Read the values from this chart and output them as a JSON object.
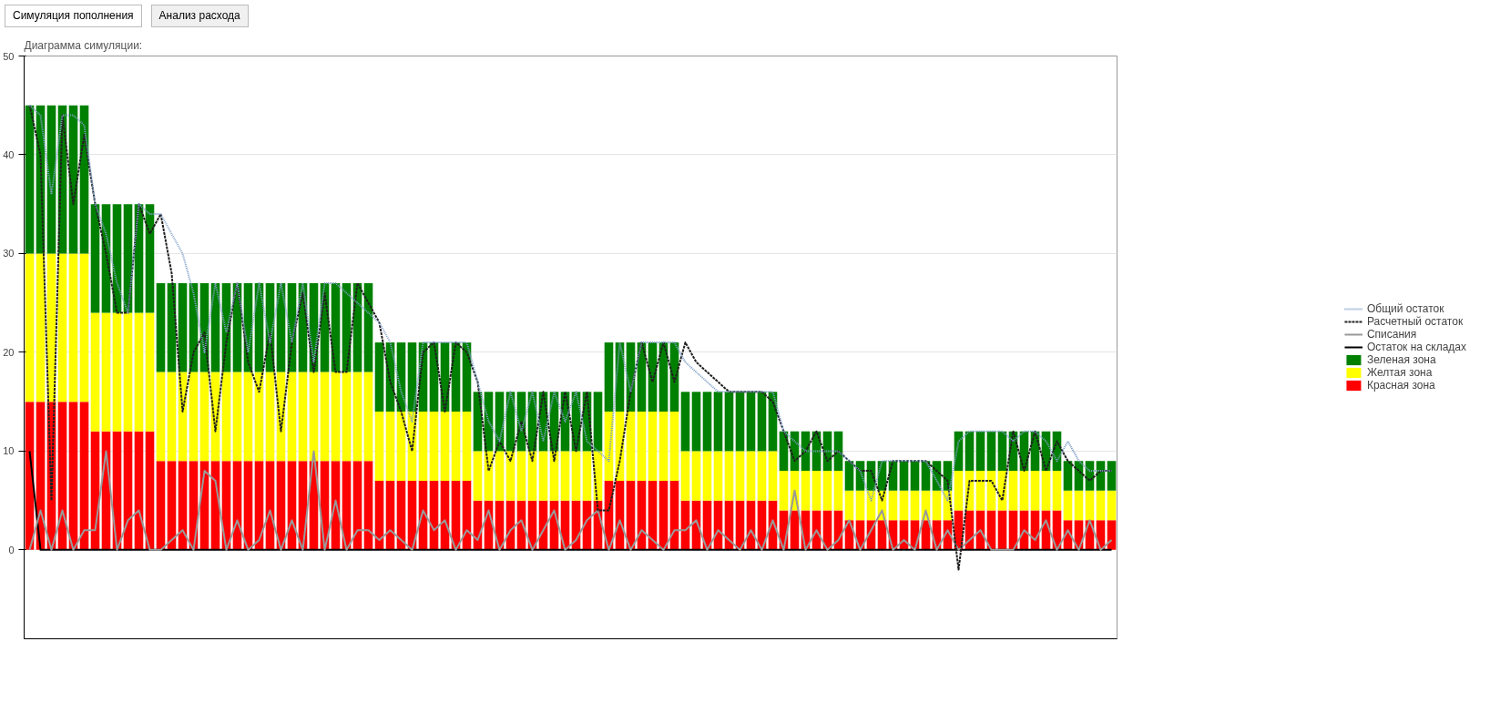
{
  "chart_data": {
    "type": "bar",
    "stacked": true,
    "title": "Диаграмма симуляции:",
    "annotations": [
      "Симуляция пополнения",
      "Анализ расхода"
    ],
    "categories": [
      null,
      null,
      null,
      null,
      null,
      null,
      null,
      null,
      null,
      null,
      null,
      null,
      null,
      null,
      null,
      null,
      null,
      null,
      null,
      null,
      null,
      null,
      null,
      null,
      null,
      null,
      null,
      null,
      null,
      null,
      null,
      null,
      null,
      null,
      null,
      null,
      null,
      null,
      null,
      null,
      null,
      null,
      null,
      null,
      null,
      null,
      null,
      null,
      null,
      null,
      null,
      null,
      null,
      null,
      null,
      null,
      null,
      null,
      null,
      null,
      null,
      null,
      null,
      null,
      null,
      null,
      null,
      null,
      null,
      null,
      null,
      null,
      null,
      null,
      null,
      null,
      null,
      null,
      null,
      null,
      null,
      null,
      null,
      null,
      null,
      null,
      null,
      null,
      null,
      null,
      null,
      null,
      null,
      null,
      null,
      null,
      null,
      null,
      null,
      null
    ],
    "ylim": [
      -9,
      50
    ],
    "yticks": [
      0,
      10,
      20,
      30,
      40,
      50
    ],
    "grid": "y",
    "legend": "right",
    "tick_labels": "y",
    "series": [
      {
        "name": "Общий остаток",
        "type": "line",
        "line_style": "dotted",
        "color": "#7f9fc8",
        "values": [
          45,
          44,
          36,
          44,
          44,
          43,
          35,
          32,
          27,
          24,
          35,
          34,
          34,
          32,
          30,
          26,
          20,
          27,
          22,
          27,
          20,
          27,
          21,
          27,
          21,
          27,
          19,
          27,
          27,
          26,
          25,
          24,
          23,
          21,
          16,
          13,
          21,
          21,
          21,
          21,
          21,
          17,
          13,
          11,
          16,
          12,
          16,
          11,
          16,
          13,
          16,
          11,
          10,
          9,
          21,
          16,
          21,
          21,
          21,
          21,
          19,
          18,
          17,
          16,
          16,
          16,
          16,
          16,
          16,
          12,
          11,
          10,
          10,
          10,
          10,
          9,
          8,
          5,
          9,
          9,
          9,
          9,
          9,
          7,
          5,
          11,
          12,
          12,
          12,
          12,
          11,
          12,
          12,
          11,
          9,
          11,
          9,
          8,
          8,
          8
        ]
      },
      {
        "name": "Расчетный остаток",
        "type": "line",
        "line_style": "dashed",
        "color": "#202020",
        "values": [
          45,
          40,
          5,
          44,
          35,
          42,
          35,
          30,
          24,
          24,
          35,
          32,
          34,
          28,
          14,
          20,
          22,
          12,
          21,
          27,
          19,
          16,
          22,
          12,
          21,
          26,
          18,
          26,
          18,
          18,
          27,
          25,
          23,
          17,
          14,
          10,
          20,
          21,
          14,
          21,
          20,
          17,
          8,
          11,
          9,
          13,
          9,
          16,
          9,
          16,
          10,
          16,
          4,
          4,
          9,
          16,
          21,
          17,
          21,
          17,
          21,
          19,
          18,
          17,
          16,
          16,
          16,
          16,
          15,
          12,
          9,
          10,
          12,
          9,
          10,
          9,
          8,
          8,
          5,
          9,
          9,
          9,
          9,
          8,
          7,
          -2,
          7,
          7,
          7,
          5,
          12,
          8,
          12,
          8,
          11,
          9,
          8,
          7,
          8,
          8
        ]
      },
      {
        "name": "Списания",
        "type": "line",
        "line_style": "solid",
        "color": "#999999",
        "values": [
          0,
          4,
          0,
          4,
          0,
          2,
          2,
          10,
          0,
          3,
          4,
          0,
          0,
          1,
          2,
          0,
          8,
          7,
          0,
          3,
          0,
          1,
          4,
          0,
          3,
          0,
          10,
          0,
          5,
          0,
          2,
          2,
          1,
          2,
          1,
          0,
          4,
          2,
          3,
          0,
          2,
          1,
          4,
          0,
          2,
          3,
          0,
          2,
          4,
          0,
          1,
          3,
          4,
          0,
          3,
          0,
          2,
          1,
          0,
          2,
          2,
          3,
          0,
          2,
          1,
          0,
          2,
          0,
          3,
          0,
          6,
          0,
          2,
          0,
          1,
          3,
          0,
          2,
          4,
          0,
          1,
          0,
          4,
          0,
          2,
          0,
          1,
          2,
          0,
          0,
          0,
          2,
          1,
          3,
          0,
          2,
          0,
          3,
          0,
          1
        ]
      },
      {
        "name": "Остаток на складах",
        "type": "line",
        "line_style": "solid",
        "color": "#000000",
        "values": [
          10,
          0,
          0,
          0,
          0,
          0,
          0,
          0,
          0,
          0,
          0,
          0,
          0,
          0,
          0,
          0,
          0,
          0,
          0,
          0,
          0,
          0,
          0,
          0,
          0,
          0,
          0,
          0,
          0,
          0,
          0,
          0,
          0,
          0,
          0,
          0,
          0,
          0,
          0,
          0,
          0,
          0,
          0,
          0,
          0,
          0,
          0,
          0,
          0,
          0,
          0,
          0,
          0,
          0,
          0,
          0,
          0,
          0,
          0,
          0,
          0,
          0,
          0,
          0,
          0,
          0,
          0,
          0,
          0,
          0,
          0,
          0,
          0,
          0,
          0,
          0,
          0,
          0,
          0,
          0,
          0,
          0,
          0,
          0,
          0,
          0,
          0,
          0,
          0,
          0,
          0,
          0,
          0,
          0,
          0,
          0,
          0,
          0,
          0,
          0
        ]
      },
      {
        "name": "Красная зона",
        "color": "#ff0000",
        "values": [
          15,
          15,
          15,
          15,
          15,
          15,
          12,
          12,
          12,
          12,
          12,
          12,
          9,
          9,
          9,
          9,
          9,
          9,
          9,
          9,
          9,
          9,
          9,
          9,
          9,
          9,
          9,
          9,
          9,
          9,
          9,
          9,
          7,
          7,
          7,
          7,
          7,
          7,
          7,
          7,
          7,
          5,
          5,
          5,
          5,
          5,
          5,
          5,
          5,
          5,
          5,
          5,
          5,
          7,
          7,
          7,
          7,
          7,
          7,
          7,
          5,
          5,
          5,
          5,
          5,
          5,
          5,
          5,
          5,
          4,
          4,
          4,
          4,
          4,
          4,
          3,
          3,
          3,
          3,
          3,
          3,
          3,
          3,
          3,
          3,
          4,
          4,
          4,
          4,
          4,
          4,
          4,
          4,
          4,
          4,
          3,
          3,
          3,
          3,
          3
        ]
      },
      {
        "name": "Желтая зона",
        "color": "#ffff00",
        "values": [
          15,
          15,
          15,
          15,
          15,
          15,
          12,
          12,
          12,
          12,
          12,
          12,
          9,
          9,
          9,
          9,
          9,
          9,
          9,
          9,
          9,
          9,
          9,
          9,
          9,
          9,
          9,
          9,
          9,
          9,
          9,
          9,
          7,
          7,
          7,
          7,
          7,
          7,
          7,
          7,
          7,
          5,
          5,
          5,
          5,
          5,
          5,
          5,
          5,
          5,
          5,
          5,
          5,
          7,
          7,
          7,
          7,
          7,
          7,
          7,
          5,
          5,
          5,
          5,
          5,
          5,
          5,
          5,
          5,
          4,
          4,
          4,
          4,
          4,
          4,
          3,
          3,
          3,
          3,
          3,
          3,
          3,
          3,
          3,
          3,
          4,
          4,
          4,
          4,
          4,
          4,
          4,
          4,
          4,
          4,
          3,
          3,
          3,
          3,
          3
        ]
      },
      {
        "name": "Зеленая зона",
        "color": "#008000",
        "values": [
          15,
          15,
          15,
          15,
          15,
          15,
          11,
          11,
          11,
          11,
          11,
          11,
          9,
          9,
          9,
          9,
          9,
          9,
          9,
          9,
          9,
          9,
          9,
          9,
          9,
          9,
          9,
          9,
          9,
          9,
          9,
          9,
          7,
          7,
          7,
          7,
          7,
          7,
          7,
          7,
          7,
          6,
          6,
          6,
          6,
          6,
          6,
          6,
          6,
          6,
          6,
          6,
          6,
          7,
          7,
          7,
          7,
          7,
          7,
          7,
          6,
          6,
          6,
          6,
          6,
          6,
          6,
          6,
          6,
          4,
          4,
          4,
          4,
          4,
          4,
          3,
          3,
          3,
          3,
          3,
          3,
          3,
          3,
          3,
          3,
          4,
          4,
          4,
          4,
          4,
          4,
          4,
          4,
          4,
          4,
          3,
          3,
          3,
          3,
          3
        ]
      }
    ]
  }
}
